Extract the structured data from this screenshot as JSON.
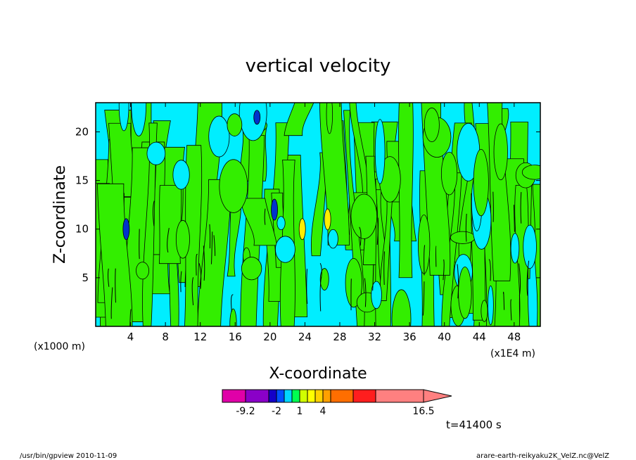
{
  "chart_data": {
    "type": "heatmap",
    "title": "vertical velocity",
    "xlabel": "X-coordinate",
    "ylabel": "Z-coordinate",
    "x_unit_left": "(x1000 m)",
    "x_unit_right": "(x1E4 m)",
    "xlim": [
      0,
      51
    ],
    "ylim": [
      0,
      23
    ],
    "x_ticks": [
      4,
      8,
      12,
      16,
      20,
      24,
      28,
      32,
      36,
      40,
      44,
      48
    ],
    "y_ticks": [
      5,
      10,
      15,
      20
    ],
    "colorbar": {
      "colors": [
        "#e000a8",
        "#8a00c8",
        "#1400c8",
        "#0050ff",
        "#00d8ff",
        "#00ff50",
        "#d0ff00",
        "#ffff00",
        "#ffd200",
        "#ffa000",
        "#ff6e00",
        "#ff1e1e",
        "#ff8080"
      ],
      "labels": [
        {
          "value": "-9.2",
          "boundary": 1
        },
        {
          "value": "-2",
          "boundary": 3
        },
        {
          "value": "1",
          "boundary": 6
        },
        {
          "value": "4",
          "boundary": 9
        },
        {
          "value": "16.5",
          "boundary": 13
        }
      ]
    },
    "regions": [
      {
        "level": "negative",
        "color": "#00eeff"
      },
      {
        "level": "small positive",
        "color": "#33ee00"
      },
      {
        "level": "strong negative",
        "color": "#0033cc",
        "center": [
          3.5,
          10.0
        ]
      },
      {
        "level": "strong negative",
        "color": "#0033cc",
        "center": [
          18.5,
          21.5
        ]
      },
      {
        "level": "strong negative",
        "color": "#0033cc",
        "center": [
          20.5,
          12.0
        ]
      },
      {
        "level": "strong positive",
        "color": "#ffee00",
        "center": [
          23.7,
          10.0
        ]
      },
      {
        "level": "strong positive",
        "color": "#ffee00",
        "center": [
          26.6,
          11.0
        ]
      }
    ]
  },
  "time_label": "t=41400 s",
  "footer": {
    "left": "/usr/bin/gpview   2010-11-09",
    "right": "arare-earth-reikyaku2K_VelZ.nc@VelZ"
  }
}
